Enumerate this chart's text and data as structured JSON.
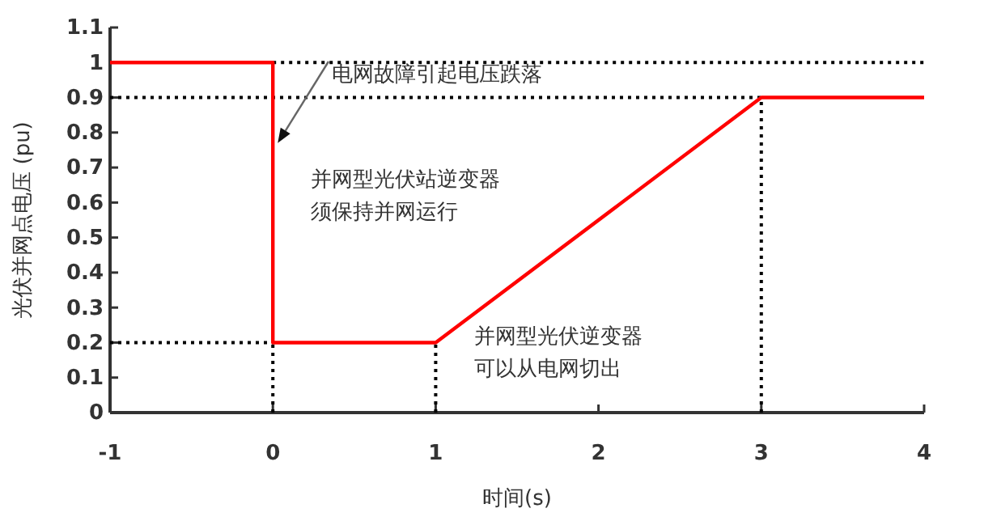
{
  "chart_data": {
    "type": "line",
    "xlabel": "时间(s)",
    "ylabel": "光伏并网点电压 (pu)",
    "xlim": [
      -1,
      4
    ],
    "xticks": [
      -1,
      0,
      1,
      2,
      3,
      4
    ],
    "ylim": [
      0,
      1.1
    ],
    "yticks": [
      0,
      0.1,
      0.2,
      0.3,
      0.4,
      0.5,
      0.6,
      0.7,
      0.8,
      0.9,
      1,
      1.1
    ],
    "grid": false,
    "series": [
      {
        "color": "#ff0000",
        "x": [
          -1,
          0,
          0,
          1,
          3,
          4
        ],
        "values": [
          1,
          1,
          0.2,
          0.2,
          0.9,
          0.9
        ]
      },
      {
        "color": "#000000",
        "line_style": "dotted",
        "x": [
          0,
          4
        ],
        "values": [
          1,
          1
        ]
      },
      {
        "color": "#000000",
        "line_style": "dotted",
        "x": [
          -1,
          3
        ],
        "values": [
          0.9,
          0.9
        ]
      },
      {
        "color": "#000000",
        "line_style": "dotted",
        "x": [
          -1,
          0
        ],
        "values": [
          0.2,
          0.2
        ]
      },
      {
        "color": "#000000",
        "line_style": "dotted",
        "x": [
          0,
          0
        ],
        "values": [
          0,
          0.2
        ]
      },
      {
        "color": "#000000",
        "line_style": "dotted",
        "x": [
          1,
          1
        ],
        "values": [
          0,
          0.2
        ]
      },
      {
        "color": "#000000",
        "line_style": "dotted",
        "x": [
          3,
          3
        ],
        "values": [
          0,
          0.9
        ]
      }
    ],
    "annotations": [
      {
        "text": "电网故障引起电压跌落",
        "x": 0.03,
        "y": 0.77
      },
      "并网型光伏站逆变器须保持并网运行",
      "并网型光伏逆变器可以从电网切出"
    ]
  }
}
